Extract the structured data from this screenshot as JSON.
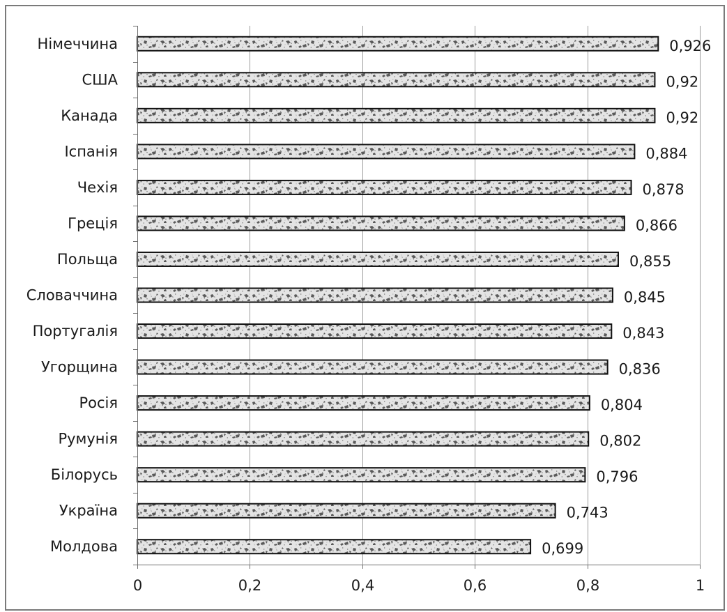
{
  "chart_data": {
    "type": "bar",
    "orientation": "horizontal",
    "title": "",
    "xlabel": "",
    "ylabel": "",
    "categories": [
      "Німеччина",
      "США",
      "Канада",
      "Іспанія",
      "Чехія",
      "Греція",
      "Польща",
      "Словаччина",
      "Португалія",
      "Угорщина",
      "Росія",
      "Румунія",
      "Білорусь",
      "Україна",
      "Молдова"
    ],
    "values": [
      0.926,
      0.92,
      0.92,
      0.884,
      0.878,
      0.866,
      0.855,
      0.845,
      0.843,
      0.836,
      0.804,
      0.802,
      0.796,
      0.743,
      0.699
    ],
    "data_labels": [
      "0,926",
      "0,92",
      "0,92",
      "0,884",
      "0,878",
      "0,866",
      "0,855",
      "0,845",
      "0,843",
      "0,836",
      "0,804",
      "0,802",
      "0,796",
      "0,743",
      "0,699"
    ],
    "xlim": [
      0,
      1
    ],
    "x_ticks": [
      0,
      0.2,
      0.4,
      0.6,
      0.8,
      1
    ],
    "x_tick_labels": [
      "0",
      "0,2",
      "0,4",
      "0,6",
      "0,8",
      "1"
    ],
    "grid": "vertical",
    "legend": "none",
    "colors": {
      "bar_fill_light": "#e4e4e4",
      "bar_fill_dark": "#555555",
      "bar_border": "#111111",
      "gridline": "#9a9a9a",
      "axis": "#6e6e6e",
      "frame": "#7a7a7a"
    }
  }
}
